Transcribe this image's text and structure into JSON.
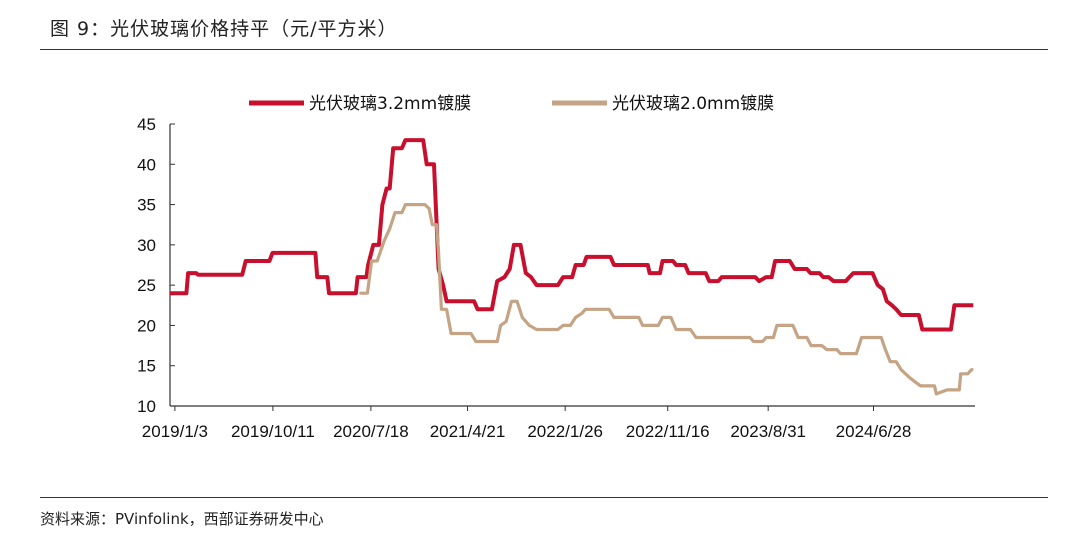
{
  "figure": {
    "title": "图 9：光伏玻璃价格持平（元/平方米）",
    "source": "资料来源：PVinfolink，西部证券研发中心"
  },
  "colors": {
    "series1": "#c8102e",
    "series2": "#c4a484"
  },
  "chart_data": {
    "type": "line",
    "title": "",
    "xlabel": "",
    "ylabel": "",
    "ylim": [
      10,
      45
    ],
    "yticks": [
      10,
      15,
      20,
      25,
      30,
      35,
      40,
      45
    ],
    "xlim": [
      "2018-12-20",
      "2025-04-15"
    ],
    "xticks": [
      "2019/1/3",
      "2019/10/11",
      "2020/7/18",
      "2021/4/21",
      "2022/1/26",
      "2022/11/16",
      "2023/8/31",
      "2024/6/28"
    ],
    "xtick_dates": [
      "2019-01-03",
      "2019-10-11",
      "2020-07-18",
      "2021-04-21",
      "2022-01-26",
      "2022-11-16",
      "2023-08-31",
      "2024-06-28"
    ],
    "grid": false,
    "legend": "top",
    "series": [
      {
        "name": "光伏玻璃3.2mm镀膜",
        "color": "#c8102e",
        "points": [
          [
            "2018-12-20",
            24
          ],
          [
            "2019-02-05",
            24
          ],
          [
            "2019-02-10",
            26.5
          ],
          [
            "2019-03-05",
            26.5
          ],
          [
            "2019-03-10",
            26.3
          ],
          [
            "2019-07-15",
            26.3
          ],
          [
            "2019-07-25",
            28
          ],
          [
            "2019-10-01",
            28
          ],
          [
            "2019-10-10",
            29
          ],
          [
            "2020-02-10",
            29
          ],
          [
            "2020-02-15",
            26
          ],
          [
            "2020-03-15",
            26
          ],
          [
            "2020-03-20",
            24
          ],
          [
            "2020-06-05",
            24
          ],
          [
            "2020-06-10",
            26
          ],
          [
            "2020-07-05",
            26
          ],
          [
            "2020-07-10",
            27.5
          ],
          [
            "2020-07-25",
            30
          ],
          [
            "2020-08-10",
            30
          ],
          [
            "2020-08-20",
            35
          ],
          [
            "2020-09-01",
            37
          ],
          [
            "2020-09-10",
            37
          ],
          [
            "2020-09-20",
            42
          ],
          [
            "2020-10-15",
            42
          ],
          [
            "2020-10-25",
            43
          ],
          [
            "2020-12-15",
            43
          ],
          [
            "2020-12-25",
            40
          ],
          [
            "2021-01-15",
            40
          ],
          [
            "2021-01-28",
            27
          ],
          [
            "2021-02-10",
            25
          ],
          [
            "2021-02-20",
            23
          ],
          [
            "2021-05-10",
            23
          ],
          [
            "2021-05-20",
            22
          ],
          [
            "2021-06-30",
            22
          ],
          [
            "2021-07-15",
            25.5
          ],
          [
            "2021-08-05",
            26
          ],
          [
            "2021-08-20",
            27
          ],
          [
            "2021-09-01",
            30
          ],
          [
            "2021-09-20",
            30
          ],
          [
            "2021-10-05",
            26.5
          ],
          [
            "2021-10-20",
            26
          ],
          [
            "2021-11-05",
            25
          ],
          [
            "2022-01-05",
            25
          ],
          [
            "2022-01-20",
            26
          ],
          [
            "2022-02-15",
            26
          ],
          [
            "2022-02-25",
            27.5
          ],
          [
            "2022-03-20",
            27.5
          ],
          [
            "2022-03-28",
            28.5
          ],
          [
            "2022-06-05",
            28.5
          ],
          [
            "2022-06-15",
            27.5
          ],
          [
            "2022-09-20",
            27.5
          ],
          [
            "2022-09-25",
            26.5
          ],
          [
            "2022-10-25",
            26.5
          ],
          [
            "2022-11-01",
            28
          ],
          [
            "2022-12-01",
            28
          ],
          [
            "2022-12-10",
            27.5
          ],
          [
            "2023-01-05",
            27.5
          ],
          [
            "2023-01-15",
            26.5
          ],
          [
            "2023-03-05",
            26.5
          ],
          [
            "2023-03-15",
            25.5
          ],
          [
            "2023-04-10",
            25.5
          ],
          [
            "2023-04-20",
            26
          ],
          [
            "2023-07-25",
            26
          ],
          [
            "2023-08-05",
            25.5
          ],
          [
            "2023-08-25",
            26
          ],
          [
            "2023-09-10",
            26
          ],
          [
            "2023-09-20",
            28
          ],
          [
            "2023-11-01",
            28
          ],
          [
            "2023-11-15",
            27
          ],
          [
            "2023-12-20",
            27
          ],
          [
            "2023-12-30",
            26.5
          ],
          [
            "2024-01-25",
            26.5
          ],
          [
            "2024-02-05",
            26
          ],
          [
            "2024-02-20",
            26
          ],
          [
            "2024-03-05",
            25.5
          ],
          [
            "2024-04-10",
            25.5
          ],
          [
            "2024-04-20",
            26
          ],
          [
            "2024-05-01",
            26.5
          ],
          [
            "2024-06-25",
            26.5
          ],
          [
            "2024-07-10",
            25
          ],
          [
            "2024-07-25",
            24.5
          ],
          [
            "2024-08-05",
            23
          ],
          [
            "2024-08-20",
            22.5
          ],
          [
            "2024-09-01",
            22
          ],
          [
            "2024-09-15",
            21.3
          ],
          [
            "2024-11-05",
            21.3
          ],
          [
            "2024-11-15",
            19.5
          ],
          [
            "2025-02-05",
            19.5
          ],
          [
            "2025-02-15",
            22.5
          ],
          [
            "2025-04-10",
            22.5
          ]
        ]
      },
      {
        "name": "光伏玻璃2.0mm镀膜",
        "color": "#c4a484",
        "points": [
          [
            "2020-06-15",
            24
          ],
          [
            "2020-07-08",
            24
          ],
          [
            "2020-07-20",
            28
          ],
          [
            "2020-08-05",
            28
          ],
          [
            "2020-08-25",
            30.5
          ],
          [
            "2020-09-10",
            32
          ],
          [
            "2020-09-25",
            34
          ],
          [
            "2020-10-15",
            34
          ],
          [
            "2020-10-25",
            35
          ],
          [
            "2020-12-20",
            35
          ],
          [
            "2021-01-01",
            34.5
          ],
          [
            "2021-01-10",
            32.5
          ],
          [
            "2021-01-22",
            32.5
          ],
          [
            "2021-01-28",
            29
          ],
          [
            "2021-02-05",
            22
          ],
          [
            "2021-02-20",
            22
          ],
          [
            "2021-03-05",
            19
          ],
          [
            "2021-05-01",
            19
          ],
          [
            "2021-05-15",
            18
          ],
          [
            "2021-07-15",
            18
          ],
          [
            "2021-07-25",
            20
          ],
          [
            "2021-08-10",
            20.5
          ],
          [
            "2021-08-25",
            23
          ],
          [
            "2021-09-10",
            23
          ],
          [
            "2021-09-25",
            21
          ],
          [
            "2021-10-15",
            20
          ],
          [
            "2021-11-05",
            19.5
          ],
          [
            "2022-01-05",
            19.5
          ],
          [
            "2022-01-20",
            20
          ],
          [
            "2022-02-10",
            20
          ],
          [
            "2022-02-25",
            21
          ],
          [
            "2022-03-15",
            21.5
          ],
          [
            "2022-03-25",
            22
          ],
          [
            "2022-06-01",
            22
          ],
          [
            "2022-06-15",
            21
          ],
          [
            "2022-08-25",
            21
          ],
          [
            "2022-09-05",
            20
          ],
          [
            "2022-10-20",
            20
          ],
          [
            "2022-11-01",
            21
          ],
          [
            "2022-11-25",
            21
          ],
          [
            "2022-12-10",
            19.5
          ],
          [
            "2023-01-20",
            19.5
          ],
          [
            "2023-02-05",
            18.5
          ],
          [
            "2023-07-10",
            18.5
          ],
          [
            "2023-07-20",
            18
          ],
          [
            "2023-08-15",
            18
          ],
          [
            "2023-08-25",
            18.5
          ],
          [
            "2023-09-15",
            18.5
          ],
          [
            "2023-09-25",
            20
          ],
          [
            "2023-11-10",
            20
          ],
          [
            "2023-11-25",
            18.5
          ],
          [
            "2023-12-20",
            18.5
          ],
          [
            "2024-01-01",
            17.5
          ],
          [
            "2024-02-01",
            17.5
          ],
          [
            "2024-02-15",
            17
          ],
          [
            "2024-03-15",
            17
          ],
          [
            "2024-03-25",
            16.5
          ],
          [
            "2024-05-10",
            16.5
          ],
          [
            "2024-05-25",
            18.5
          ],
          [
            "2024-07-20",
            18.5
          ],
          [
            "2024-08-01",
            17
          ],
          [
            "2024-08-15",
            15.5
          ],
          [
            "2024-09-01",
            15.5
          ],
          [
            "2024-09-15",
            14.5
          ],
          [
            "2024-10-10",
            13.5
          ],
          [
            "2024-10-25",
            13
          ],
          [
            "2024-11-10",
            12.5
          ],
          [
            "2024-12-20",
            12.5
          ],
          [
            "2024-12-25",
            11.5
          ],
          [
            "2025-01-25",
            12
          ],
          [
            "2025-03-01",
            12
          ],
          [
            "2025-03-05",
            14
          ],
          [
            "2025-03-25",
            14
          ],
          [
            "2025-04-05",
            14.5
          ],
          [
            "2025-04-10",
            14.5
          ]
        ]
      }
    ]
  }
}
